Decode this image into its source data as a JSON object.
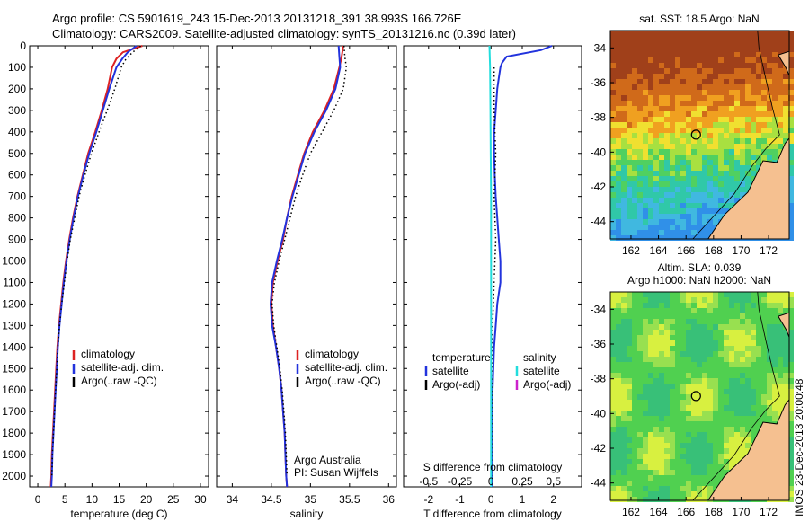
{
  "header": {
    "line1": "Argo profile: CS 5901619_243 15-Dec-2013 20131218_391 38.993S 166.726E",
    "line2": "Climatology: CARS2009. Satellite-adjusted climatology: synTS_20131216.nc (0.39d later)"
  },
  "depth_axis": {
    "ticks": [
      0,
      100,
      200,
      300,
      400,
      500,
      600,
      700,
      800,
      900,
      1000,
      1100,
      1200,
      1300,
      1400,
      1500,
      1600,
      1700,
      1800,
      1900,
      2000
    ],
    "ylim": [
      0,
      2050
    ]
  },
  "chart_data": [
    {
      "type": "line",
      "id": "temperature",
      "xlabel": "temperature (deg C)",
      "xlim": [
        -1.5,
        31.5
      ],
      "xticks": [
        0,
        5,
        10,
        15,
        20,
        25,
        30
      ],
      "legend": [
        {
          "label": "climatology",
          "color": "#dd2222"
        },
        {
          "label": "satellite-adj. clim.",
          "color": "#2233dd"
        },
        {
          "label": "Argo(..raw -QC)",
          "color": "#000000"
        }
      ],
      "series": [
        {
          "name": "climatology",
          "color": "#dd2222",
          "points": [
            [
              19.3,
              0
            ],
            [
              15.7,
              30
            ],
            [
              14.5,
              60
            ],
            [
              13.7,
              100
            ],
            [
              12.9,
              200
            ],
            [
              11.8,
              300
            ],
            [
              10.6,
              400
            ],
            [
              9.3,
              500
            ],
            [
              8.3,
              600
            ],
            [
              7.3,
              700
            ],
            [
              6.5,
              800
            ],
            [
              5.8,
              900
            ],
            [
              5.2,
              1000
            ],
            [
              4.7,
              1100
            ],
            [
              4.3,
              1200
            ],
            [
              3.9,
              1300
            ],
            [
              3.6,
              1400
            ],
            [
              3.4,
              1500
            ],
            [
              3.2,
              1600
            ],
            [
              3.0,
              1700
            ],
            [
              2.8,
              1800
            ],
            [
              2.6,
              1900
            ],
            [
              2.5,
              2000
            ],
            [
              2.4,
              2050
            ]
          ]
        },
        {
          "name": "satellite-adj. clim.",
          "color": "#2233dd",
          "points": [
            [
              18.2,
              0
            ],
            [
              16.6,
              30
            ],
            [
              15.6,
              60
            ],
            [
              14.5,
              100
            ],
            [
              13.2,
              200
            ],
            [
              12.0,
              300
            ],
            [
              10.8,
              400
            ],
            [
              9.5,
              500
            ],
            [
              8.4,
              600
            ],
            [
              7.4,
              700
            ],
            [
              6.6,
              800
            ],
            [
              5.9,
              900
            ],
            [
              5.3,
              1000
            ],
            [
              4.8,
              1100
            ],
            [
              4.4,
              1200
            ],
            [
              4.0,
              1300
            ],
            [
              3.7,
              1400
            ],
            [
              3.5,
              1500
            ],
            [
              3.3,
              1600
            ],
            [
              3.1,
              1700
            ],
            [
              2.9,
              1800
            ],
            [
              2.7,
              1900
            ],
            [
              2.6,
              2000
            ],
            [
              2.5,
              2050
            ]
          ]
        },
        {
          "name": "Argo(..raw -QC)",
          "color": "#000000",
          "points": [
            [
              19.0,
              0
            ],
            [
              17.5,
              30
            ],
            [
              16.3,
              60
            ],
            [
              15.4,
              100
            ],
            [
              14.2,
              200
            ],
            [
              12.8,
              300
            ],
            [
              11.3,
              400
            ],
            [
              9.9,
              500
            ],
            [
              8.7,
              600
            ],
            [
              7.6,
              700
            ],
            [
              6.8,
              800
            ],
            [
              6.0,
              900
            ],
            [
              5.4,
              1000
            ],
            [
              4.9,
              1100
            ],
            [
              4.4,
              1200
            ],
            [
              4.0,
              1300
            ],
            [
              3.7,
              1400
            ],
            [
              3.5,
              1500
            ],
            [
              3.3,
              1600
            ],
            [
              3.1,
              1700
            ],
            [
              2.9,
              1800
            ],
            [
              2.7,
              1900
            ],
            [
              2.6,
              2000
            ]
          ]
        }
      ]
    },
    {
      "type": "line",
      "id": "salinity",
      "xlabel": "salinity",
      "xlim": [
        33.8,
        36.1
      ],
      "xticks": [
        34,
        34.5,
        35,
        35.5,
        36
      ],
      "legend": [
        {
          "label": "climatology",
          "color": "#dd2222"
        },
        {
          "label": "satellite-adj. clim.",
          "color": "#2233dd"
        },
        {
          "label": "Argo(..raw -QC)",
          "color": "#000000"
        }
      ],
      "annotation": [
        "Argo Australia",
        "PI: Susan Wijffels"
      ],
      "series": [
        {
          "name": "climatology",
          "color": "#dd2222",
          "points": [
            [
              35.42,
              0
            ],
            [
              35.4,
              50
            ],
            [
              35.37,
              100
            ],
            [
              35.3,
              200
            ],
            [
              35.18,
              300
            ],
            [
              35.03,
              400
            ],
            [
              34.92,
              500
            ],
            [
              34.84,
              600
            ],
            [
              34.76,
              700
            ],
            [
              34.7,
              800
            ],
            [
              34.65,
              900
            ],
            [
              34.58,
              1000
            ],
            [
              34.52,
              1100
            ],
            [
              34.5,
              1200
            ],
            [
              34.52,
              1300
            ],
            [
              34.56,
              1400
            ],
            [
              34.6,
              1500
            ],
            [
              34.63,
              1600
            ],
            [
              34.65,
              1700
            ],
            [
              34.67,
              1800
            ],
            [
              34.68,
              1900
            ],
            [
              34.69,
              2000
            ],
            [
              34.7,
              2050
            ]
          ]
        },
        {
          "name": "satellite-adj. clim.",
          "color": "#2233dd",
          "points": [
            [
              35.36,
              0
            ],
            [
              35.37,
              50
            ],
            [
              35.38,
              100
            ],
            [
              35.32,
              200
            ],
            [
              35.2,
              300
            ],
            [
              35.05,
              400
            ],
            [
              34.93,
              500
            ],
            [
              34.85,
              600
            ],
            [
              34.77,
              700
            ],
            [
              34.7,
              800
            ],
            [
              34.64,
              900
            ],
            [
              34.57,
              1000
            ],
            [
              34.51,
              1100
            ],
            [
              34.49,
              1200
            ],
            [
              34.51,
              1300
            ],
            [
              34.56,
              1400
            ],
            [
              34.6,
              1500
            ],
            [
              34.63,
              1600
            ],
            [
              34.65,
              1700
            ],
            [
              34.67,
              1800
            ],
            [
              34.68,
              1900
            ],
            [
              34.69,
              2000
            ],
            [
              34.7,
              2050
            ]
          ]
        },
        {
          "name": "Argo(..raw -QC)",
          "color": "#000000",
          "points": [
            [
              35.43,
              0
            ],
            [
              35.44,
              50
            ],
            [
              35.46,
              100
            ],
            [
              35.42,
              200
            ],
            [
              35.3,
              300
            ],
            [
              35.15,
              400
            ],
            [
              35.0,
              500
            ],
            [
              34.9,
              600
            ],
            [
              34.81,
              700
            ],
            [
              34.74,
              800
            ],
            [
              34.67,
              900
            ],
            [
              34.6,
              1000
            ],
            [
              34.54,
              1100
            ],
            [
              34.51,
              1200
            ],
            [
              34.53,
              1300
            ],
            [
              34.57,
              1400
            ],
            [
              34.61,
              1500
            ],
            [
              34.64,
              1600
            ],
            [
              34.66,
              1700
            ],
            [
              34.68,
              1800
            ],
            [
              34.69,
              1900
            ],
            [
              34.7,
              2000
            ]
          ]
        }
      ]
    },
    {
      "type": "line",
      "id": "difference",
      "xlabel": "T difference from climatology",
      "xlabel_top": "S difference from climatology",
      "xlim": [
        -2.8,
        2.9
      ],
      "xticks": [
        -2,
        -1,
        0,
        1,
        2
      ],
      "xticks_top": [
        [
          -0.5,
          "-0.5"
        ],
        [
          -0.25,
          "-0.25"
        ],
        [
          0,
          "0"
        ],
        [
          0.25,
          "0.25"
        ],
        [
          0.5,
          "0.5"
        ]
      ],
      "legend": {
        "temperature_title": "temperature",
        "salinity_title": "salinity",
        "temperature": [
          {
            "label": "satellite",
            "color": "#2233dd"
          },
          {
            "label": "Argo(-adj)",
            "color": "#000000"
          }
        ],
        "salinity": [
          {
            "label": "satellite",
            "color": "#22dddd"
          },
          {
            "label": "Argo(-adj)",
            "color": "#cc22cc"
          }
        ]
      },
      "series": [
        {
          "name": "T satellite",
          "color": "#2233dd",
          "points": [
            [
              1.95,
              0
            ],
            [
              1.6,
              20
            ],
            [
              0.5,
              50
            ],
            [
              0.35,
              80
            ],
            [
              0.3,
              100
            ],
            [
              0.25,
              150
            ],
            [
              0.2,
              200
            ],
            [
              0.15,
              300
            ],
            [
              0.1,
              400
            ],
            [
              0.1,
              500
            ],
            [
              0.12,
              600
            ],
            [
              0.15,
              700
            ],
            [
              0.2,
              800
            ],
            [
              0.25,
              900
            ],
            [
              0.3,
              1000
            ],
            [
              0.3,
              1100
            ],
            [
              0.2,
              1200
            ],
            [
              0.15,
              1300
            ],
            [
              0.1,
              1400
            ],
            [
              0.05,
              1600
            ],
            [
              0.03,
              1800
            ],
            [
              0.02,
              2000
            ],
            [
              0.02,
              2050
            ]
          ]
        },
        {
          "name": "T Argo",
          "color": "#000000",
          "points": [
            [
              0.1,
              100
            ],
            [
              0.1,
              300
            ],
            [
              0.15,
              500
            ],
            [
              0.1,
              700
            ],
            [
              0.15,
              900
            ],
            [
              0.1,
              1100
            ],
            [
              0.05,
              1300
            ],
            [
              0.05,
              1500
            ],
            [
              0.03,
              1700
            ],
            [
              0.02,
              1900
            ],
            [
              0.02,
              2000
            ]
          ]
        },
        {
          "name": "S satellite",
          "color": "#22dddd",
          "points": [
            [
              -0.05,
              0
            ],
            [
              -0.03,
              100
            ],
            [
              -0.02,
              300
            ],
            [
              -0.01,
              500
            ],
            [
              0.0,
              700
            ],
            [
              0.0,
              900
            ],
            [
              0.0,
              1100
            ],
            [
              0.0,
              1300
            ],
            [
              0.0,
              1500
            ],
            [
              0.0,
              1700
            ],
            [
              0.0,
              1900
            ],
            [
              0.0,
              2050
            ]
          ]
        }
      ]
    }
  ],
  "maps": {
    "sst": {
      "title": "sat. SST: 18.5 Argo: NaN",
      "yticks": [
        -34,
        -36,
        -38,
        -40,
        -42,
        -44
      ],
      "xticks": [
        162,
        164,
        166,
        168,
        170,
        172
      ],
      "lon": [
        160.5,
        173.5
      ],
      "lat": [
        -45,
        -33
      ]
    },
    "sla": {
      "title_line1": "Altim. SLA: 0.039",
      "title_line2": "Argo h1000: NaN h2000: NaN",
      "yticks": [
        -34,
        -36,
        -38,
        -40,
        -42,
        -44
      ],
      "xticks": [
        162,
        164,
        166,
        168,
        170,
        172
      ],
      "lon": [
        160.5,
        173.5
      ],
      "lat": [
        -45,
        -33
      ]
    },
    "profile_location": {
      "lon": 166.726,
      "lat": -38.993
    }
  },
  "sidebar_stamp": "IMOS 23-Dec-2013 20:00:48"
}
